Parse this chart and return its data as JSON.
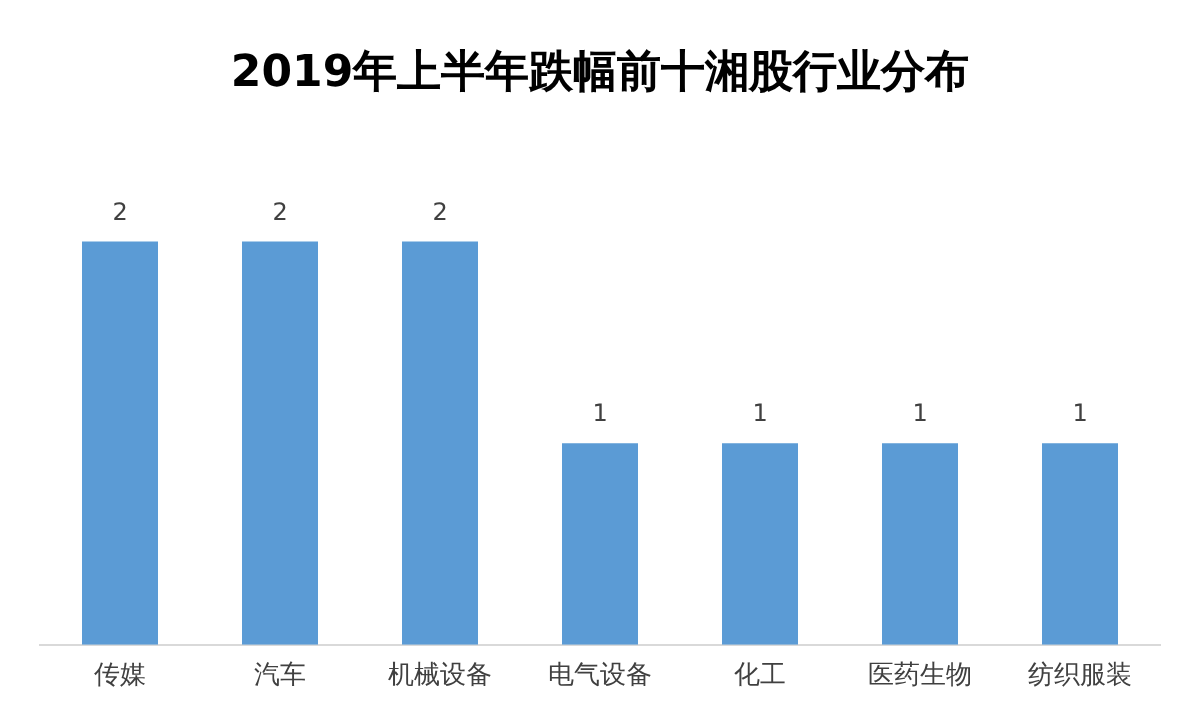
{
  "chart_data": {
    "type": "bar",
    "title": "2019年上半年跌幅前十湘股行业分布",
    "categories": [
      "传媒",
      "汽车",
      "机械设备",
      "电气设备",
      "化工",
      "医药生物",
      "纺织服装"
    ],
    "values": [
      2,
      2,
      2,
      1,
      1,
      1,
      1
    ],
    "color": "#5b9bd5",
    "data_labels": true,
    "grid": false,
    "legend": false
  }
}
